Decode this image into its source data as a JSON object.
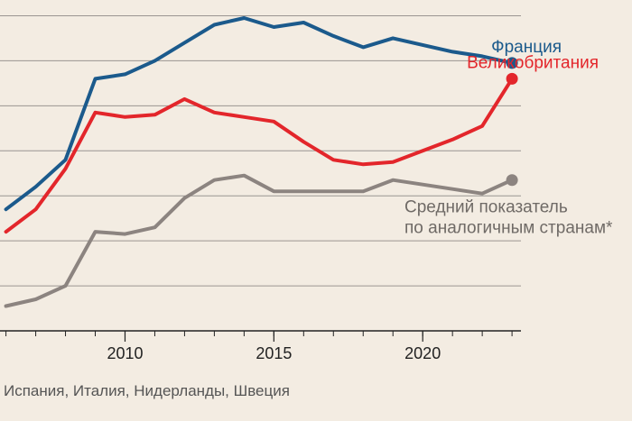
{
  "chart_data": {
    "type": "line",
    "x": [
      2006,
      2007,
      2008,
      2009,
      2010,
      2011,
      2012,
      2013,
      2014,
      2015,
      2016,
      2017,
      2018,
      2019,
      2020,
      2021,
      2022,
      2023
    ],
    "xlim": [
      2005.8,
      2023.3
    ],
    "ylim": [
      0,
      7.35
    ],
    "xticks": [
      2010,
      2015,
      2020
    ],
    "grid_y": [
      1,
      2,
      3,
      4,
      5,
      6,
      7
    ],
    "grid": true,
    "series": [
      {
        "name": "Франция",
        "color": "#1b5a8c",
        "values": [
          2.7,
          3.2,
          3.8,
          5.6,
          5.7,
          6.0,
          6.4,
          6.8,
          6.95,
          6.75,
          6.85,
          6.55,
          6.3,
          6.5,
          6.35,
          6.2,
          6.1,
          5.95
        ]
      },
      {
        "name": "Великобритания",
        "color": "#e3262b",
        "values": [
          2.2,
          2.7,
          3.6,
          4.85,
          4.75,
          4.8,
          5.15,
          4.85,
          4.75,
          4.65,
          4.2,
          3.8,
          3.7,
          3.75,
          4.0,
          4.25,
          4.55,
          5.6
        ]
      },
      {
        "name": "Средний показатель по аналогичным странам*",
        "name_lines": [
          "Средний показатель",
          "по аналогичным странам*"
        ],
        "color": "#8c8480",
        "values": [
          0.55,
          0.7,
          1.0,
          2.2,
          2.15,
          2.3,
          2.95,
          3.35,
          3.45,
          3.1,
          3.1,
          3.1,
          3.1,
          3.35,
          3.25,
          3.15,
          3.05,
          3.35
        ]
      }
    ],
    "footnote": "Испания, Италия, Нидерланды, Швеция"
  }
}
